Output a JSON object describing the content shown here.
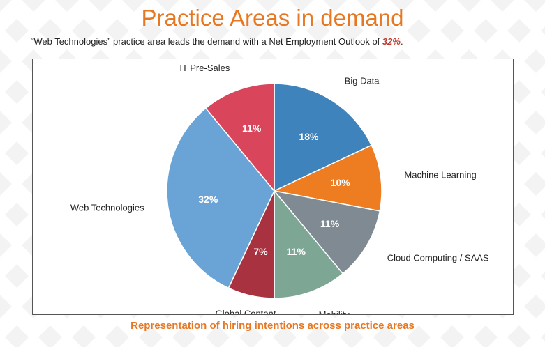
{
  "header": {
    "title": "Practice Areas in demand",
    "subtitle_prefix": "“Web Technologies” practice area leads the demand with a Net Employment Outlook of ",
    "subtitle_highlight": "32%",
    "subtitle_suffix": "."
  },
  "caption": "Representation of hiring intentions across practice areas",
  "colors": {
    "accent": "#e87722",
    "highlight": "#c0392b"
  },
  "chart_data": {
    "type": "pie",
    "title": "",
    "slices": [
      {
        "name": "Big Data",
        "value": 18,
        "label": "18%",
        "color": "#3f83bd"
      },
      {
        "name": "Machine Learning",
        "value": 10,
        "label": "10%",
        "color": "#ed7d20"
      },
      {
        "name": "Cloud Computing / SAAS",
        "value": 11,
        "label": "11%",
        "color": "#808a93"
      },
      {
        "name": "Mobility",
        "value": 11,
        "label": "11%",
        "color": "#7da794"
      },
      {
        "name": "Global Content\nSolutions",
        "value": 7,
        "label": "7%",
        "color": "#a8323f"
      },
      {
        "name": "Web Technologies",
        "value": 32,
        "label": "32%",
        "color": "#6aa4d7"
      },
      {
        "name": "IT Pre-Sales",
        "value": 11,
        "label": "11%",
        "color": "#d9465c"
      }
    ],
    "legend": "none"
  }
}
